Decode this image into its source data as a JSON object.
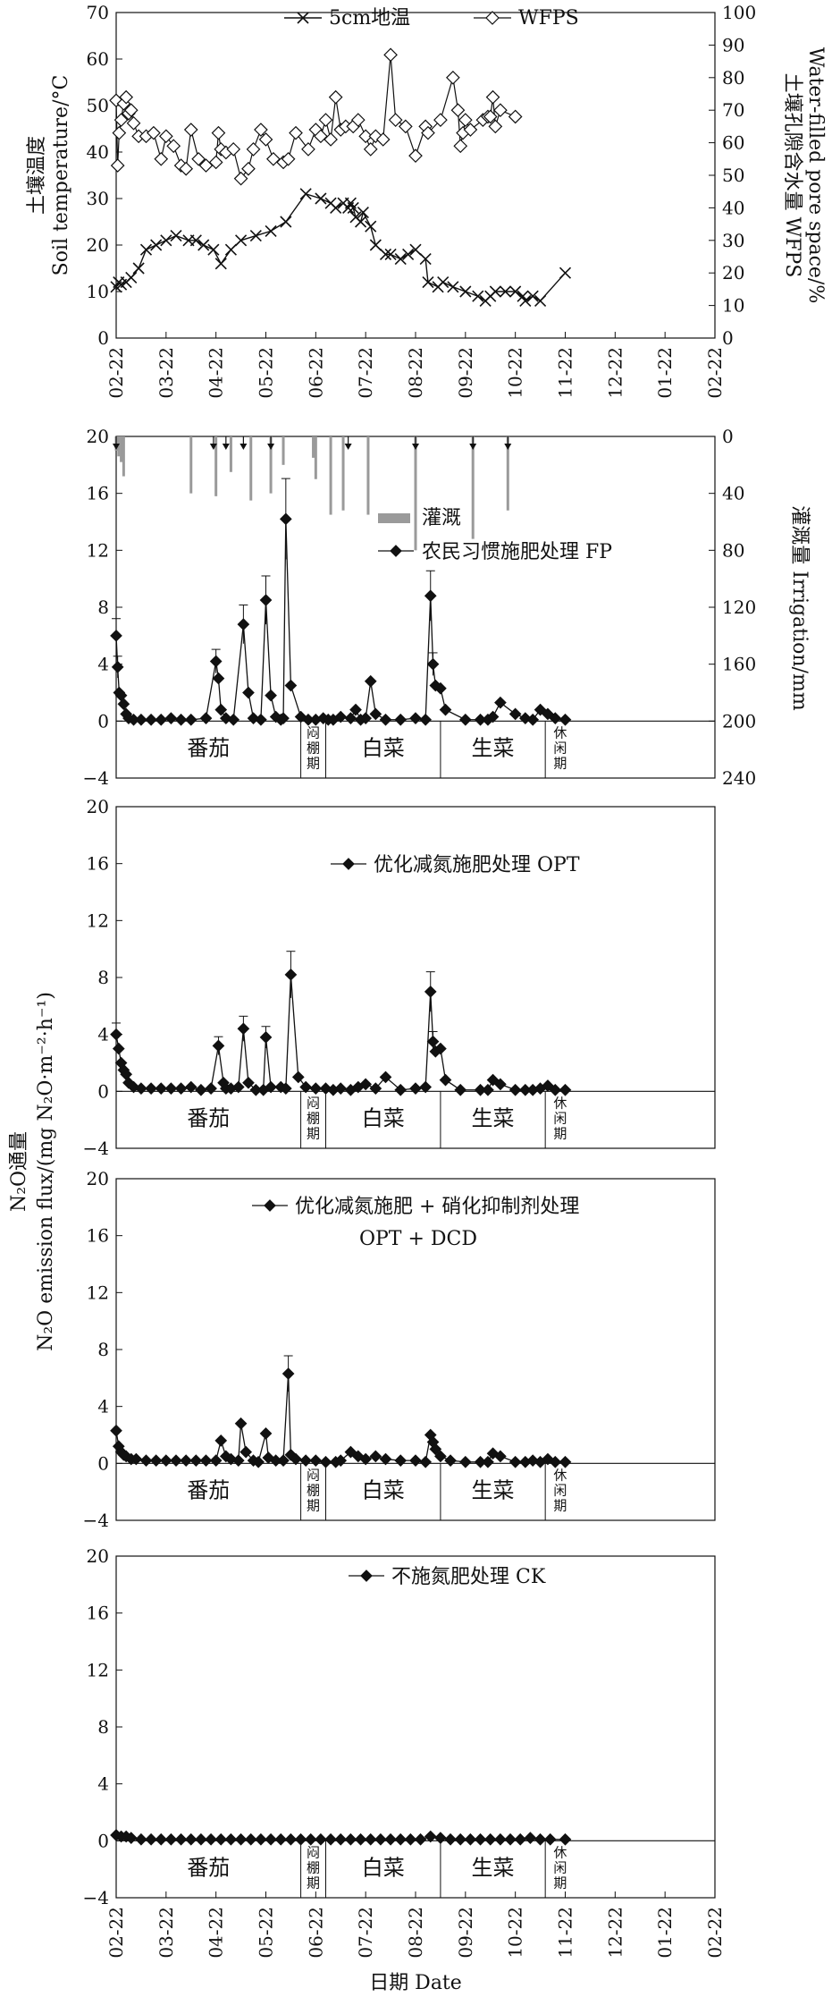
{
  "xaxis": {
    "ticks": [
      "02-22",
      "03-22",
      "04-22",
      "05-22",
      "06-22",
      "07-22",
      "08-22",
      "09-22",
      "10-22",
      "11-22",
      "12-22",
      "01-22",
      "02-22"
    ],
    "title": "日期 Date"
  },
  "panel1": {
    "legend": {
      "temp": "5cm地温",
      "wfps": "WFPS"
    },
    "ylabel_left": [
      "土壤温度",
      "Soil  temperature/°C"
    ],
    "ylabel_right": [
      "土壤孔隙含水量 WFPS",
      "Water-filled pore space/%"
    ],
    "yticks_left": [
      "0",
      "10",
      "20",
      "30",
      "40",
      "50",
      "60",
      "70"
    ],
    "yticks_right": [
      "0",
      "10",
      "20",
      "30",
      "40",
      "50",
      "60",
      "70",
      "80",
      "90",
      "100"
    ]
  },
  "panel2": {
    "legend_bar": "灌溉",
    "legend_line": "农民习惯施肥处理 FP",
    "yticks_right": [
      "0",
      "40",
      "80",
      "120",
      "160",
      "200",
      "240"
    ],
    "ylabel_right": "灌溉量 Irrigation/mm"
  },
  "panel3": {
    "legend_line": "优化减氮施肥处理 OPT"
  },
  "panel4": {
    "legend_line": "优化减氮施肥 + 硝化抑制剂处理",
    "legend_line2": "OPT + DCD"
  },
  "panel5": {
    "legend_line": "不施氮肥处理 CK"
  },
  "n2o_yticks": [
    "−4",
    "0",
    "4",
    "8",
    "12",
    "16",
    "20"
  ],
  "n2o_ylabel": [
    "N₂O通量",
    "N₂O emission flux/(mg N₂O·m⁻²·h⁻¹)"
  ],
  "stages": [
    {
      "name": "番茄",
      "start": 0,
      "end": 3.7
    },
    {
      "name": "闷棚期",
      "start": 3.7,
      "end": 4.2
    },
    {
      "name": "白菜",
      "start": 4.2,
      "end": 6.5
    },
    {
      "name": "生菜",
      "start": 6.5,
      "end": 8.6
    },
    {
      "name": "休闲期",
      "start": 8.6,
      "end": 9.2
    }
  ],
  "chart_data": [
    {
      "type": "line",
      "x_axis": "month offset from 02-22",
      "series": [
        {
          "name": "5cm地温",
          "axis": "left",
          "x": [
            0,
            0.05,
            0.1,
            0.2,
            0.3,
            0.45,
            0.6,
            0.8,
            1.0,
            1.2,
            1.45,
            1.6,
            1.75,
            1.95,
            2.1,
            2.3,
            2.5,
            2.8,
            3.1,
            3.4,
            3.8,
            4.1,
            4.3,
            4.4,
            4.55,
            4.65,
            4.7,
            4.75,
            4.8,
            4.9,
            4.95,
            5.1,
            5.2,
            5.4,
            5.5,
            5.7,
            5.85,
            6.0,
            6.2,
            6.25,
            6.45,
            6.55,
            6.75,
            7.0,
            7.25,
            7.4,
            7.5,
            7.6,
            7.8,
            8.0,
            8.15,
            8.2,
            8.35,
            8.5,
            9.0
          ],
          "values": [
            11,
            12,
            11.5,
            12,
            13,
            15,
            19,
            20,
            21,
            22,
            21,
            21,
            20,
            19,
            16,
            19,
            21,
            22,
            23,
            25,
            31,
            30,
            29,
            28,
            29,
            28,
            29,
            28,
            26,
            25,
            27,
            24,
            20,
            18,
            18,
            17,
            18,
            19,
            17,
            12,
            11,
            12,
            11,
            10,
            9,
            8,
            9,
            10,
            10,
            10,
            9,
            8,
            9,
            8,
            14
          ]
        },
        {
          "name": "WFPS",
          "axis": "right",
          "x": [
            0,
            0.03,
            0.06,
            0.1,
            0.15,
            0.2,
            0.25,
            0.3,
            0.35,
            0.45,
            0.6,
            0.75,
            0.9,
            1.0,
            1.15,
            1.3,
            1.4,
            1.5,
            1.65,
            1.8,
            2.0,
            2.05,
            2.1,
            2.2,
            2.35,
            2.5,
            2.65,
            2.75,
            2.9,
            3.0,
            3.15,
            3.35,
            3.45,
            3.6,
            3.85,
            4.0,
            4.1,
            4.2,
            4.3,
            4.4,
            4.5,
            4.6,
            4.75,
            4.85,
            5.0,
            5.1,
            5.2,
            5.35,
            5.5,
            5.6,
            5.8,
            6.0,
            6.2,
            6.25,
            6.5,
            6.75,
            6.85,
            6.9,
            6.95,
            7.0,
            7.1,
            7.35,
            7.45,
            7.5,
            7.55,
            7.6,
            7.7,
            8.0
          ],
          "values": [
            73,
            53,
            63,
            67,
            72,
            74,
            69,
            70,
            66,
            62,
            62,
            63,
            55,
            62,
            59,
            53,
            52,
            64,
            55,
            53,
            54,
            63,
            58,
            57,
            58,
            49,
            52,
            58,
            64,
            61,
            55,
            54,
            55,
            63,
            58,
            64,
            62,
            67,
            61,
            74,
            64,
            65,
            65,
            67,
            62,
            58,
            62,
            61,
            87,
            67,
            65,
            56,
            65,
            63,
            67,
            80,
            70,
            59,
            63,
            67,
            64,
            67,
            68,
            68,
            74,
            65,
            70,
            68
          ]
        }
      ],
      "ylabel_left": "Soil temperature/°C",
      "ylim_left": [
        0,
        70
      ],
      "ylabel_right": "Water-filled pore space/%",
      "ylim_right": [
        0,
        100
      ]
    },
    {
      "type": "line",
      "series": [
        {
          "name": "农民习惯施肥处理 FP",
          "x": [
            0,
            0.03,
            0.06,
            0.1,
            0.15,
            0.2,
            0.25,
            0.35,
            0.5,
            0.7,
            0.9,
            1.1,
            1.3,
            1.5,
            1.8,
            2.0,
            2.05,
            2.1,
            2.2,
            2.35,
            2.55,
            2.65,
            2.75,
            2.9,
            3.0,
            3.1,
            3.2,
            3.3,
            3.35,
            3.4,
            3.5,
            3.7,
            3.85,
            4.0,
            4.15,
            4.25,
            4.35,
            4.5,
            4.7,
            4.8,
            4.9,
            5.0,
            5.1,
            5.2,
            5.4,
            5.7,
            6.0,
            6.2,
            6.3,
            6.35,
            6.4,
            6.5,
            6.6,
            7.0,
            7.3,
            7.45,
            7.55,
            7.7,
            8.0,
            8.2,
            8.35,
            8.5,
            8.65,
            8.8,
            9.0
          ],
          "values": [
            6,
            3.8,
            2,
            1.8,
            1.2,
            0.5,
            0.2,
            0.1,
            0.1,
            0.1,
            0.1,
            0.2,
            0.1,
            0.1,
            0.2,
            4.2,
            3,
            0.8,
            0.2,
            0.1,
            6.8,
            2,
            0.2,
            0.1,
            8.5,
            1.8,
            0.3,
            0.1,
            0.2,
            14.2,
            2.5,
            0.3,
            0.1,
            0.1,
            0.2,
            0.1,
            0.1,
            0.3,
            0.2,
            0.8,
            0.1,
            0.2,
            2.8,
            0.5,
            0.1,
            0.1,
            0.2,
            0.1,
            8.8,
            4,
            2.5,
            2.3,
            0.8,
            0.1,
            0.1,
            0.1,
            0.3,
            1.3,
            0.5,
            0.2,
            0.1,
            0.8,
            0.5,
            0.2,
            0.1
          ]
        },
        {
          "name": "灌溉",
          "axis": "right",
          "type": "bar",
          "x": [
            0,
            0.05,
            0.1,
            0.15,
            1.5,
            2.0,
            2.3,
            2.7,
            3.1,
            3.35,
            3.95,
            4.0,
            4.3,
            4.55,
            5.05,
            6.0,
            7.15,
            7.85
          ],
          "values": [
            10,
            14,
            18,
            28,
            40,
            42,
            25,
            45,
            40,
            20,
            15,
            30,
            55,
            52,
            55,
            80,
            72,
            52
          ]
        }
      ],
      "ylim": [
        -4,
        20
      ],
      "ylim_right": [
        0,
        240
      ]
    },
    {
      "type": "line",
      "series": [
        {
          "name": "优化减氮施肥处理 OPT",
          "x": [
            0,
            0.05,
            0.1,
            0.15,
            0.2,
            0.25,
            0.35,
            0.5,
            0.7,
            0.9,
            1.1,
            1.3,
            1.5,
            1.7,
            1.9,
            2.05,
            2.15,
            2.2,
            2.3,
            2.45,
            2.55,
            2.65,
            2.8,
            2.95,
            3.0,
            3.1,
            3.3,
            3.4,
            3.5,
            3.65,
            3.8,
            4.0,
            4.2,
            4.35,
            4.5,
            4.7,
            4.85,
            5.0,
            5.2,
            5.4,
            5.7,
            6.0,
            6.2,
            6.3,
            6.35,
            6.4,
            6.5,
            6.6,
            6.9,
            7.3,
            7.45,
            7.55,
            7.7,
            8.0,
            8.2,
            8.35,
            8.5,
            8.65,
            8.8,
            9.0
          ],
          "values": [
            4,
            3,
            2,
            1.5,
            1.2,
            0.6,
            0.3,
            0.2,
            0.2,
            0.2,
            0.2,
            0.2,
            0.3,
            0.1,
            0.2,
            3.2,
            0.6,
            0.2,
            0.2,
            0.3,
            4.4,
            0.6,
            0.1,
            0.1,
            3.8,
            0.3,
            0.3,
            0.2,
            8.2,
            1,
            0.3,
            0.2,
            0.2,
            0.1,
            0.2,
            0.1,
            0.3,
            0.5,
            0.2,
            1,
            0.1,
            0.2,
            0.3,
            7,
            3.5,
            2.8,
            3,
            0.8,
            0.1,
            0.1,
            0.1,
            0.8,
            0.5,
            0.1,
            0.1,
            0.1,
            0.2,
            0.4,
            0.1,
            0.1
          ]
        }
      ],
      "ylim": [
        -4,
        20
      ]
    },
    {
      "type": "line",
      "series": [
        {
          "name": "优化减氮施肥 + 硝化抑制剂处理 OPT + DCD",
          "x": [
            0,
            0.05,
            0.1,
            0.15,
            0.2,
            0.3,
            0.4,
            0.6,
            0.8,
            1.0,
            1.2,
            1.4,
            1.6,
            1.8,
            2.0,
            2.1,
            2.2,
            2.3,
            2.45,
            2.5,
            2.6,
            2.75,
            2.85,
            3.0,
            3.05,
            3.2,
            3.35,
            3.45,
            3.5,
            3.6,
            3.8,
            4.0,
            4.2,
            4.4,
            4.5,
            4.7,
            4.85,
            5.0,
            5.2,
            5.4,
            5.7,
            6.0,
            6.2,
            6.3,
            6.35,
            6.4,
            6.5,
            6.7,
            7.0,
            7.3,
            7.45,
            7.55,
            7.7,
            8.0,
            8.2,
            8.35,
            8.5,
            8.65,
            8.8,
            9.0
          ],
          "values": [
            2.3,
            1.2,
            0.8,
            0.6,
            0.5,
            0.3,
            0.3,
            0.2,
            0.2,
            0.2,
            0.2,
            0.2,
            0.2,
            0.2,
            0.2,
            1.6,
            0.5,
            0.3,
            0.2,
            2.8,
            0.8,
            0.2,
            0.1,
            2.1,
            0.4,
            0.2,
            0.2,
            6.3,
            0.6,
            0.3,
            0.2,
            0.2,
            0.1,
            0.1,
            0.2,
            0.8,
            0.5,
            0.3,
            0.5,
            0.3,
            0.2,
            0.2,
            0.1,
            2,
            1.5,
            1,
            0.5,
            0.2,
            0.1,
            0.1,
            0.1,
            0.7,
            0.5,
            0.1,
            0.1,
            0.2,
            0.1,
            0.3,
            0.1,
            0.1
          ]
        }
      ],
      "ylim": [
        -4,
        20
      ]
    },
    {
      "type": "line",
      "series": [
        {
          "name": "不施氮肥处理 CK",
          "x": [
            0,
            0.1,
            0.2,
            0.3,
            0.5,
            0.7,
            0.9,
            1.1,
            1.3,
            1.5,
            1.7,
            1.9,
            2.1,
            2.3,
            2.5,
            2.7,
            2.9,
            3.1,
            3.3,
            3.5,
            3.7,
            3.9,
            4.1,
            4.3,
            4.5,
            4.7,
            4.9,
            5.1,
            5.3,
            5.5,
            5.7,
            5.9,
            6.1,
            6.3,
            6.5,
            6.7,
            6.9,
            7.1,
            7.3,
            7.5,
            7.7,
            7.9,
            8.1,
            8.3,
            8.5,
            8.7,
            9.0
          ],
          "values": [
            0.4,
            0.3,
            0.3,
            0.2,
            0.1,
            0.1,
            0.1,
            0.1,
            0.1,
            0.1,
            0.1,
            0.1,
            0.1,
            0.1,
            0.1,
            0.1,
            0.1,
            0.1,
            0.1,
            0.1,
            0.1,
            0.1,
            0.1,
            0.1,
            0.1,
            0.1,
            0.1,
            0.1,
            0.1,
            0.1,
            0.1,
            0.1,
            0.1,
            0.3,
            0.2,
            0.1,
            0.1,
            0.1,
            0.1,
            0.1,
            0.1,
            0.1,
            0.1,
            0.2,
            0.1,
            0.1,
            0.1
          ]
        }
      ],
      "ylim": [
        -4,
        20
      ]
    }
  ]
}
